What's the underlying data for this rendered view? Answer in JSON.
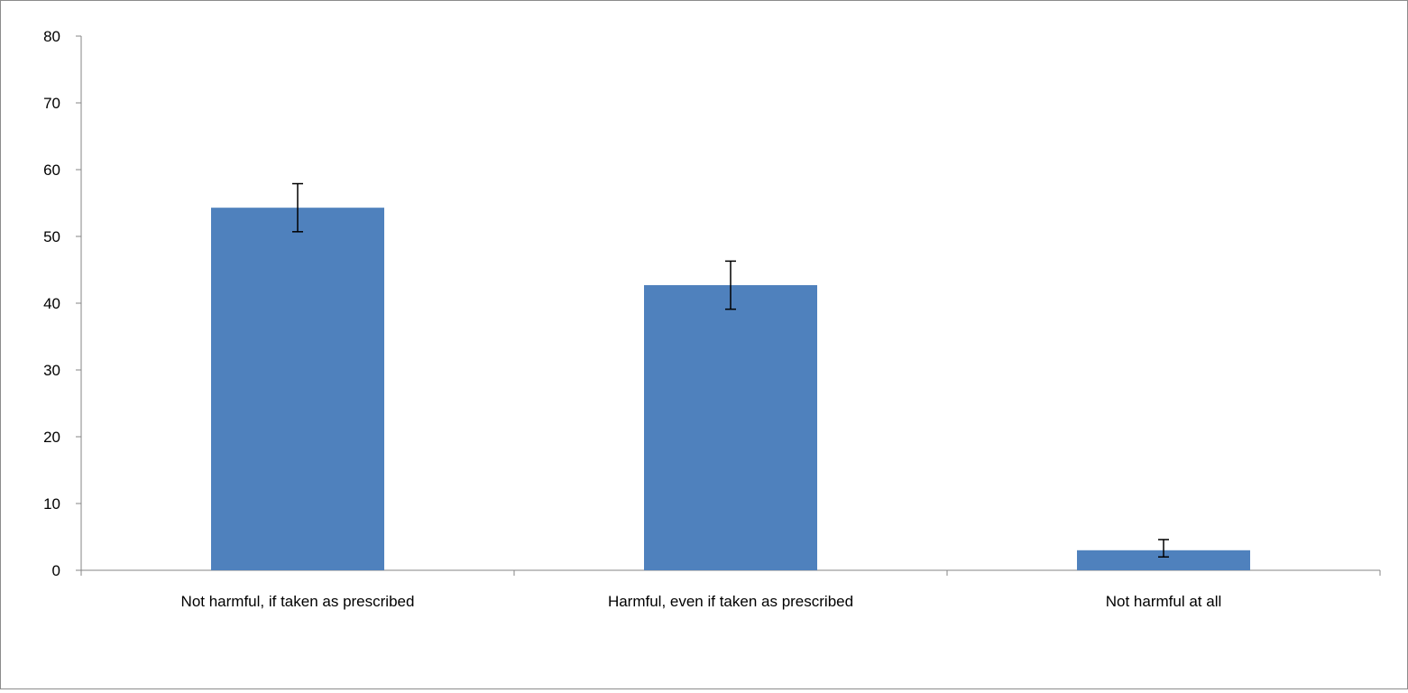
{
  "chart_data": {
    "type": "bar",
    "title": "",
    "xlabel": "",
    "ylabel": "",
    "categories": [
      "Not harmful, if taken as prescribed",
      "Harmful, even if taken as prescribed",
      "Not harmful at all"
    ],
    "values": [
      54.3,
      42.7,
      3.0
    ],
    "error_low": [
      50.7,
      39.1,
      2.0
    ],
    "error_high": [
      57.9,
      46.3,
      4.6
    ],
    "ylim": [
      0,
      80
    ],
    "yticks": [
      "0",
      "10",
      "20",
      "30",
      "40",
      "50",
      "60",
      "70",
      "80"
    ],
    "grid": false,
    "legend": "none",
    "colors": {
      "bar": "#4f81bd",
      "axis": "#868686",
      "error_bar": "#000000"
    }
  }
}
